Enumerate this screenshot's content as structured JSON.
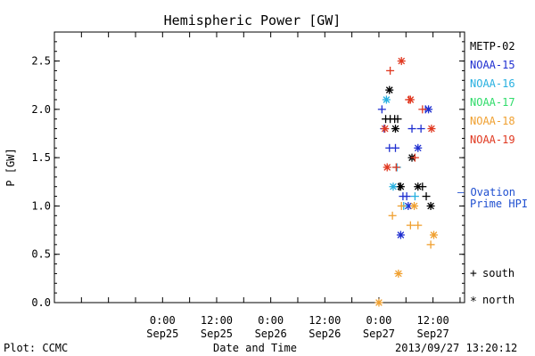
{
  "chart_data": {
    "type": "scatter",
    "title": "Hemispheric Power [GW]",
    "ylabel": "P [GW]",
    "xlabel": "Date and Time",
    "footer_left": "Plot: CCMC",
    "footer_right": "2013/09/27 13:20:12",
    "ylim": [
      0,
      2.8
    ],
    "yticks": [
      "0.0",
      "0.5",
      "1.0",
      "1.5",
      "2.0",
      "2.5"
    ],
    "xlim": [
      "2013-09-24T00:00",
      "2013-09-27T19:00"
    ],
    "xticks": [
      {
        "time": "2013-09-25T00:00",
        "line1": "0:00",
        "line2": "Sep25"
      },
      {
        "time": "2013-09-25T12:00",
        "line1": "12:00",
        "line2": "Sep25"
      },
      {
        "time": "2013-09-26T00:00",
        "line1": "0:00",
        "line2": "Sep26"
      },
      {
        "time": "2013-09-26T12:00",
        "line1": "12:00",
        "line2": "Sep26"
      },
      {
        "time": "2013-09-27T00:00",
        "line1": "0:00",
        "line2": "Sep27"
      },
      {
        "time": "2013-09-27T12:00",
        "line1": "12:00",
        "line2": "Sep27"
      }
    ],
    "legend_position": "right",
    "marker_legend": [
      {
        "symbol": "+",
        "label": "south"
      },
      {
        "symbol": "*",
        "label": "north"
      }
    ],
    "ovation_label": [
      "— Ovation",
      "Prime HPI"
    ],
    "ovation_color": "#1f4fd0",
    "series": [
      {
        "name": "METP-02",
        "color": "#000000",
        "points": [
          {
            "t": "2013-09-27T01:30",
            "y": 1.9,
            "m": "+"
          },
          {
            "t": "2013-09-27T02:30",
            "y": 1.9,
            "m": "+"
          },
          {
            "t": "2013-09-27T03:30",
            "y": 1.9,
            "m": "+"
          },
          {
            "t": "2013-09-27T04:10",
            "y": 1.9,
            "m": "+"
          },
          {
            "t": "2013-09-27T04:30",
            "y": 1.2,
            "m": "+"
          },
          {
            "t": "2013-09-27T09:40",
            "y": 1.2,
            "m": "+"
          },
          {
            "t": "2013-09-27T10:30",
            "y": 1.1,
            "m": "+"
          },
          {
            "t": "2013-09-27T02:20",
            "y": 2.2,
            "m": "*"
          },
          {
            "t": "2013-09-27T03:40",
            "y": 1.8,
            "m": "*"
          },
          {
            "t": "2013-09-27T04:50",
            "y": 1.2,
            "m": "*"
          },
          {
            "t": "2013-09-27T07:20",
            "y": 1.5,
            "m": "*"
          },
          {
            "t": "2013-09-27T08:40",
            "y": 1.2,
            "m": "*"
          },
          {
            "t": "2013-09-27T11:30",
            "y": 1.0,
            "m": "*"
          }
        ]
      },
      {
        "name": "NOAA-15",
        "color": "#1f2fd0",
        "points": [
          {
            "t": "2013-09-27T00:40",
            "y": 2.0,
            "m": "+"
          },
          {
            "t": "2013-09-27T01:10",
            "y": 1.8,
            "m": "+"
          },
          {
            "t": "2013-09-27T02:20",
            "y": 1.6,
            "m": "+"
          },
          {
            "t": "2013-09-27T03:40",
            "y": 1.6,
            "m": "+"
          },
          {
            "t": "2013-09-27T05:20",
            "y": 1.1,
            "m": "+"
          },
          {
            "t": "2013-09-27T06:10",
            "y": 1.1,
            "m": "+"
          },
          {
            "t": "2013-09-27T07:20",
            "y": 1.8,
            "m": "+"
          },
          {
            "t": "2013-09-27T09:20",
            "y": 1.8,
            "m": "+"
          },
          {
            "t": "2013-09-27T10:20",
            "y": 2.0,
            "m": "+"
          },
          {
            "t": "2013-09-27T04:50",
            "y": 0.7,
            "m": "*"
          },
          {
            "t": "2013-09-27T06:30",
            "y": 1.0,
            "m": "*"
          },
          {
            "t": "2013-09-27T08:40",
            "y": 1.6,
            "m": "*"
          },
          {
            "t": "2013-09-27T11:00",
            "y": 2.0,
            "m": "*"
          }
        ]
      },
      {
        "name": "NOAA-16",
        "color": "#27b0e0",
        "points": [
          {
            "t": "2013-09-27T04:00",
            "y": 1.4,
            "m": "+"
          },
          {
            "t": "2013-09-27T05:30",
            "y": 1.0,
            "m": "+"
          },
          {
            "t": "2013-09-27T08:00",
            "y": 1.1,
            "m": "+"
          },
          {
            "t": "2013-09-27T01:40",
            "y": 2.1,
            "m": "*"
          },
          {
            "t": "2013-09-27T03:10",
            "y": 1.2,
            "m": "*"
          }
        ]
      },
      {
        "name": "NOAA-17",
        "color": "#2fdc6a",
        "points": []
      },
      {
        "name": "NOAA-18",
        "color": "#f0a030",
        "points": [
          {
            "t": "2013-09-27T03:00",
            "y": 0.9,
            "m": "+"
          },
          {
            "t": "2013-09-27T05:00",
            "y": 1.0,
            "m": "+"
          },
          {
            "t": "2013-09-27T07:00",
            "y": 0.8,
            "m": "+"
          },
          {
            "t": "2013-09-27T08:40",
            "y": 0.8,
            "m": "+"
          },
          {
            "t": "2013-09-27T11:30",
            "y": 0.6,
            "m": "+"
          },
          {
            "t": "2013-09-27T00:00",
            "y": 0.0,
            "m": "*"
          },
          {
            "t": "2013-09-27T04:20",
            "y": 0.3,
            "m": "*"
          },
          {
            "t": "2013-09-27T07:50",
            "y": 1.0,
            "m": "*"
          },
          {
            "t": "2013-09-27T12:10",
            "y": 0.7,
            "m": "*"
          }
        ]
      },
      {
        "name": "NOAA-19",
        "color": "#e03820",
        "points": [
          {
            "t": "2013-09-27T02:30",
            "y": 2.4,
            "m": "+"
          },
          {
            "t": "2013-09-27T03:50",
            "y": 1.4,
            "m": "+"
          },
          {
            "t": "2013-09-27T06:40",
            "y": 2.1,
            "m": "+"
          },
          {
            "t": "2013-09-27T08:00",
            "y": 1.5,
            "m": "+"
          },
          {
            "t": "2013-09-27T09:40",
            "y": 2.0,
            "m": "+"
          },
          {
            "t": "2013-09-27T01:20",
            "y": 1.8,
            "m": "*"
          },
          {
            "t": "2013-09-27T01:50",
            "y": 1.4,
            "m": "*"
          },
          {
            "t": "2013-09-27T05:00",
            "y": 2.5,
            "m": "*"
          },
          {
            "t": "2013-09-27T07:00",
            "y": 2.1,
            "m": "*"
          },
          {
            "t": "2013-09-27T11:40",
            "y": 1.8,
            "m": "*"
          }
        ]
      }
    ]
  }
}
